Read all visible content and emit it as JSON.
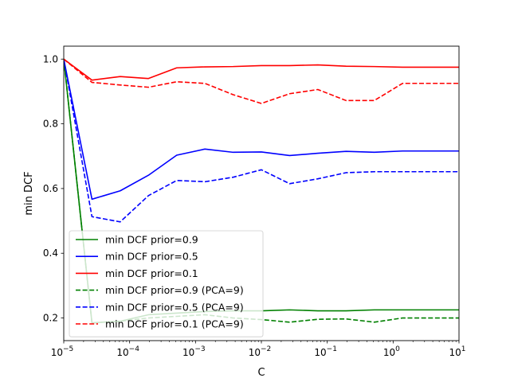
{
  "chart_data": {
    "type": "line",
    "title": "",
    "xlabel": "C",
    "ylabel": "min DCF",
    "x_scale": "log",
    "xlim": [
      1e-05,
      10
    ],
    "ylim": [
      0.13,
      1.04
    ],
    "x_ticks": [
      {
        "value": 1e-05,
        "base": "10",
        "exp": "−5"
      },
      {
        "value": 0.0001,
        "base": "10",
        "exp": "−4"
      },
      {
        "value": 0.001,
        "base": "10",
        "exp": "−3"
      },
      {
        "value": 0.01,
        "base": "10",
        "exp": "−2"
      },
      {
        "value": 0.1,
        "base": "10",
        "exp": "−1"
      },
      {
        "value": 1,
        "base": "10",
        "exp": "0"
      },
      {
        "value": 10,
        "base": "10",
        "exp": "1"
      }
    ],
    "y_ticks": [
      {
        "value": 0.2,
        "label": "0.2"
      },
      {
        "value": 0.4,
        "label": "0.4"
      },
      {
        "value": 0.6,
        "label": "0.6"
      },
      {
        "value": 0.8,
        "label": "0.8"
      },
      {
        "value": 1.0,
        "label": "1.0"
      }
    ],
    "grid": false,
    "legend_position": "lower-left",
    "x": [
      1e-05,
      2.68e-05,
      7.2e-05,
      0.000193,
      0.000518,
      0.00139,
      0.00373,
      0.01,
      0.0268,
      0.072,
      0.193,
      0.518,
      1.39,
      3.73,
      10
    ],
    "series": [
      {
        "name": "min DCF prior=0.9",
        "color": "#008000",
        "dash": "solid",
        "values": [
          1.0,
          0.185,
          0.19,
          0.21,
          0.215,
          0.22,
          0.222,
          0.222,
          0.225,
          0.222,
          0.222,
          0.225,
          0.225,
          0.225,
          0.225
        ]
      },
      {
        "name": "min DCF prior=0.5",
        "color": "#0000ff",
        "dash": "solid",
        "values": [
          1.0,
          0.567,
          0.593,
          0.641,
          0.703,
          0.722,
          0.712,
          0.713,
          0.702,
          0.709,
          0.715,
          0.712,
          0.716,
          0.716,
          0.716
        ]
      },
      {
        "name": "min DCF prior=0.1",
        "color": "#ff0000",
        "dash": "solid",
        "values": [
          1.0,
          0.935,
          0.946,
          0.94,
          0.973,
          0.976,
          0.977,
          0.98,
          0.98,
          0.982,
          0.978,
          0.977,
          0.975,
          0.975,
          0.975
        ]
      },
      {
        "name": "min DCF prior=0.9 (PCA=9)",
        "color": "#008000",
        "dash": "dashed",
        "values": [
          1.0,
          0.185,
          0.19,
          0.2,
          0.205,
          0.21,
          0.2,
          0.195,
          0.187,
          0.196,
          0.197,
          0.187,
          0.2,
          0.2,
          0.2
        ]
      },
      {
        "name": "min DCF prior=0.5 (PCA=9)",
        "color": "#0000ff",
        "dash": "dashed",
        "values": [
          1.0,
          0.513,
          0.497,
          0.578,
          0.625,
          0.621,
          0.635,
          0.658,
          0.615,
          0.63,
          0.649,
          0.652,
          0.652,
          0.652,
          0.652
        ]
      },
      {
        "name": "min DCF prior=0.1 (PCA=9)",
        "color": "#ff0000",
        "dash": "dashed",
        "values": [
          1.0,
          0.928,
          0.92,
          0.913,
          0.93,
          0.925,
          0.89,
          0.863,
          0.893,
          0.906,
          0.872,
          0.872,
          0.925,
          0.925,
          0.925
        ]
      }
    ]
  }
}
